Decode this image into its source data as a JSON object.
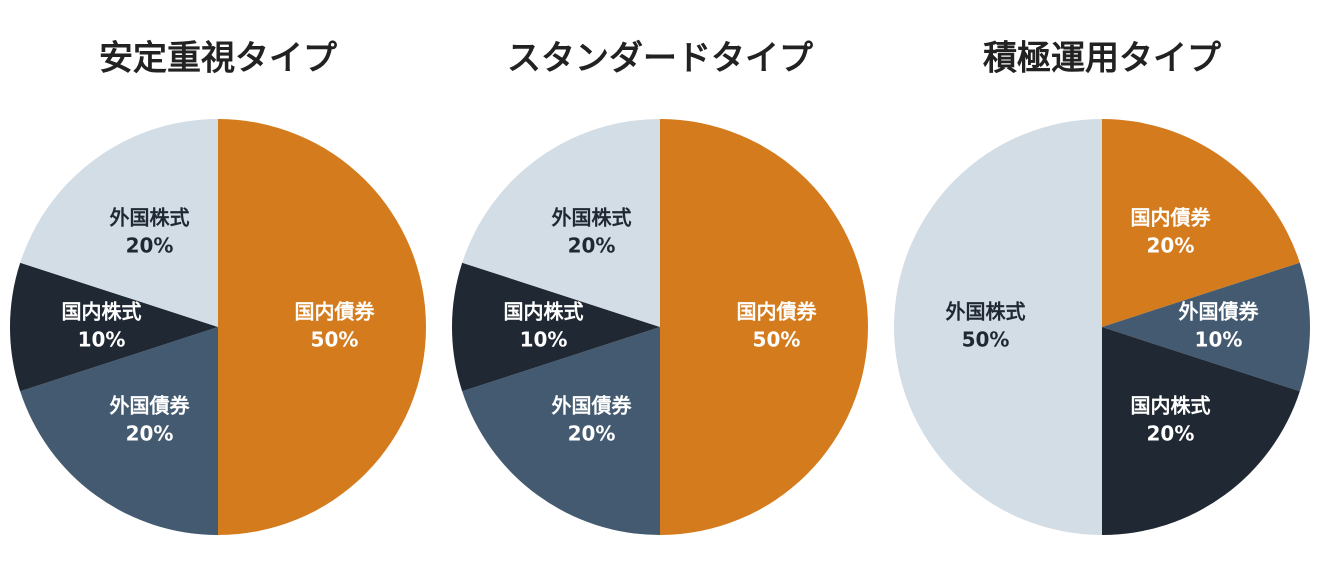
{
  "chart_data": [
    {
      "type": "pie",
      "title": "安定重視タイプ",
      "categories": [
        "国内債券",
        "外国債券",
        "国内株式",
        "外国株式"
      ],
      "values": [
        50,
        20,
        10,
        20
      ],
      "value_labels": [
        "50%",
        "20%",
        "10%",
        "20%"
      ],
      "colors": [
        "#d47b1e",
        "#435a70",
        "#1f2833",
        "#d3dde6"
      ]
    },
    {
      "type": "pie",
      "title": "スタンダードタイプ",
      "categories": [
        "国内債券",
        "外国債券",
        "国内株式",
        "外国株式"
      ],
      "values": [
        50,
        20,
        10,
        20
      ],
      "value_labels": [
        "50%",
        "20%",
        "10%",
        "20%"
      ],
      "colors": [
        "#d47b1e",
        "#435a70",
        "#1f2833",
        "#d3dde6"
      ]
    },
    {
      "type": "pie",
      "title": "積極運用タイプ",
      "categories": [
        "国内債券",
        "外国債券",
        "国内株式",
        "外国株式"
      ],
      "values": [
        20,
        10,
        20,
        50
      ],
      "value_labels": [
        "20%",
        "10%",
        "20%",
        "50%"
      ],
      "colors": [
        "#d47b1e",
        "#435a70",
        "#1f2833",
        "#d3dde6"
      ]
    }
  ]
}
